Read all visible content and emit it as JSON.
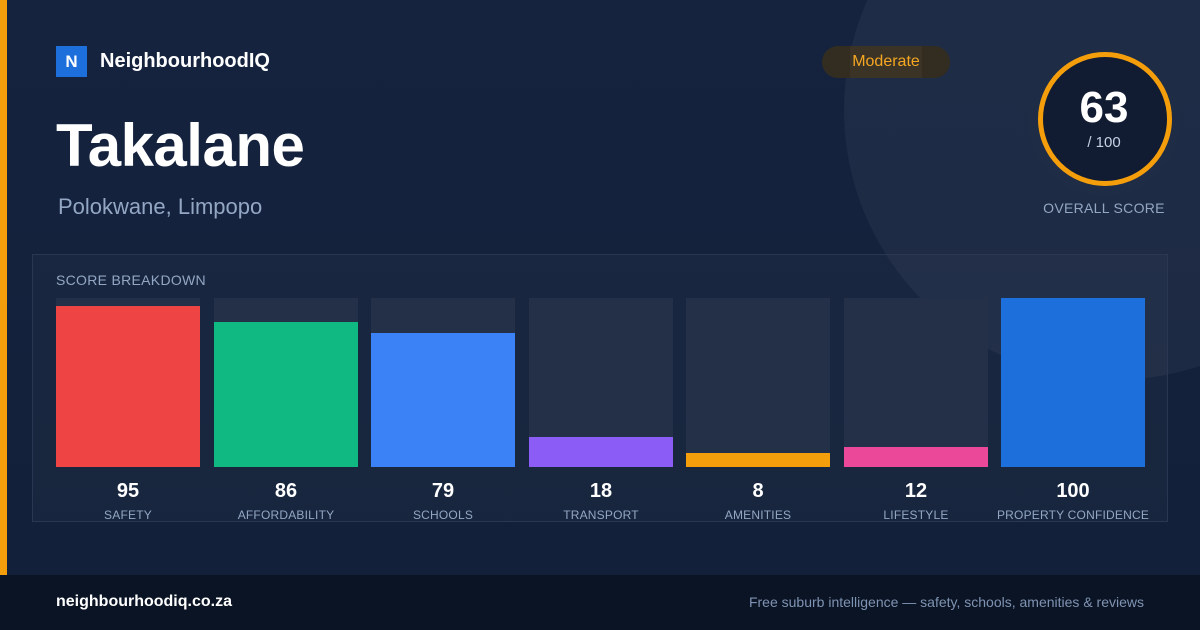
{
  "brand": {
    "logo_letter": "N",
    "name": "NeighbourhoodIQ",
    "accent_color": "#f59e0b",
    "logo_color": "#1d6fdc"
  },
  "suburb": {
    "name": "Takalane",
    "location": "Polokwane, Limpopo"
  },
  "badge": {
    "label": "Moderate",
    "color": "#f5a623"
  },
  "overall": {
    "score": "63",
    "max_label": "/ 100",
    "label": "OVERALL SCORE"
  },
  "breakdown": {
    "title": "SCORE BREAKDOWN",
    "max": 100,
    "items": [
      {
        "label": "SAFETY",
        "value": "95",
        "score": 95,
        "color": "#ef4444"
      },
      {
        "label": "AFFORDABILITY",
        "value": "86",
        "score": 86,
        "color": "#10b981"
      },
      {
        "label": "SCHOOLS",
        "value": "79",
        "score": 79,
        "color": "#3b82f6"
      },
      {
        "label": "TRANSPORT",
        "value": "18",
        "score": 18,
        "color": "#8b5cf6"
      },
      {
        "label": "AMENITIES",
        "value": "8",
        "score": 8,
        "color": "#f59e0b"
      },
      {
        "label": "LIFESTYLE",
        "value": "12",
        "score": 12,
        "color": "#ec4899"
      },
      {
        "label": "PROPERTY CONFIDENCE",
        "value": "100",
        "score": 100,
        "color": "#1d6fdc"
      }
    ]
  },
  "footer": {
    "domain": "neighbourhoodiq.co.za",
    "tagline": "Free suburb intelligence — safety, schools, amenities & reviews"
  }
}
